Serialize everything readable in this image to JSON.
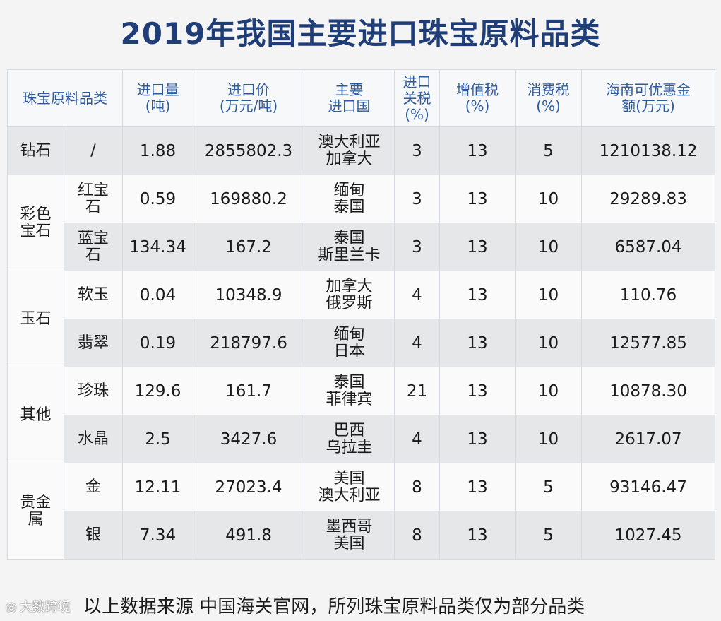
{
  "title": "2019年我国主要进口珠宝原料品类",
  "headers": {
    "category": "珠宝原料品类",
    "volume_1": "进口量",
    "volume_2": "(吨)",
    "price_1": "进口价",
    "price_2": "(万元/吨)",
    "origin_1": "主要",
    "origin_2": "进口国",
    "tariff_1": "进口",
    "tariff_2": "关税",
    "tariff_3": "(%)",
    "vat_1": "增值税",
    "vat_2": "(%)",
    "consumption_1": "消费税",
    "consumption_2": "(%)",
    "hainan_1": "海南可优惠金",
    "hainan_2": "额(万元)"
  },
  "groups": {
    "diamond": "钻石",
    "colored_1": "彩色",
    "colored_2": "宝石",
    "jade": "玉石",
    "other": "其他",
    "precious_1": "贵金",
    "precious_2": "属"
  },
  "rows": [
    {
      "sub_1": "/",
      "sub_2": "",
      "volume": "1.88",
      "price": "2855802.3",
      "origin_1": "澳大利亚",
      "origin_2": "加拿大",
      "tariff": "3",
      "vat": "13",
      "consumption": "5",
      "hainan": "1210138.12"
    },
    {
      "sub_1": "红宝",
      "sub_2": "石",
      "volume": "0.59",
      "price": "169880.2",
      "origin_1": "缅甸",
      "origin_2": "泰国",
      "tariff": "3",
      "vat": "13",
      "consumption": "10",
      "hainan": "29289.83"
    },
    {
      "sub_1": "蓝宝",
      "sub_2": "石",
      "volume": "134.34",
      "price": "167.2",
      "origin_1": "泰国",
      "origin_2": "斯里兰卡",
      "tariff": "3",
      "vat": "13",
      "consumption": "10",
      "hainan": "6587.04"
    },
    {
      "sub_1": "软玉",
      "sub_2": "",
      "volume": "0.04",
      "price": "10348.9",
      "origin_1": "加拿大",
      "origin_2": "俄罗斯",
      "tariff": "4",
      "vat": "13",
      "consumption": "10",
      "hainan": "110.76"
    },
    {
      "sub_1": "翡翠",
      "sub_2": "",
      "volume": "0.19",
      "price": "218797.6",
      "origin_1": "缅甸",
      "origin_2": "日本",
      "tariff": "4",
      "vat": "13",
      "consumption": "10",
      "hainan": "12577.85"
    },
    {
      "sub_1": "珍珠",
      "sub_2": "",
      "volume": "129.6",
      "price": "161.7",
      "origin_1": "泰国",
      "origin_2": "菲律宾",
      "tariff": "21",
      "vat": "13",
      "consumption": "10",
      "hainan": "10878.30"
    },
    {
      "sub_1": "水晶",
      "sub_2": "",
      "volume": "2.5",
      "price": "3427.6",
      "origin_1": "巴西",
      "origin_2": "乌拉圭",
      "tariff": "4",
      "vat": "13",
      "consumption": "10",
      "hainan": "2617.07"
    },
    {
      "sub_1": "金",
      "sub_2": "",
      "volume": "12.11",
      "price": "27023.4",
      "origin_1": "美国",
      "origin_2": "澳大利亚",
      "tariff": "8",
      "vat": "13",
      "consumption": "5",
      "hainan": "93146.47"
    },
    {
      "sub_1": "银",
      "sub_2": "",
      "volume": "7.34",
      "price": "491.8",
      "origin_1": "墨西哥",
      "origin_2": "美国",
      "tariff": "8",
      "vat": "13",
      "consumption": "5",
      "hainan": "1027.45"
    }
  ],
  "footer": "以上数据来源 中国海关官网，所列珠宝原料品类仅为部分品类",
  "watermark": {
    "icon": "weibo-icon",
    "text": "大数跨境"
  }
}
